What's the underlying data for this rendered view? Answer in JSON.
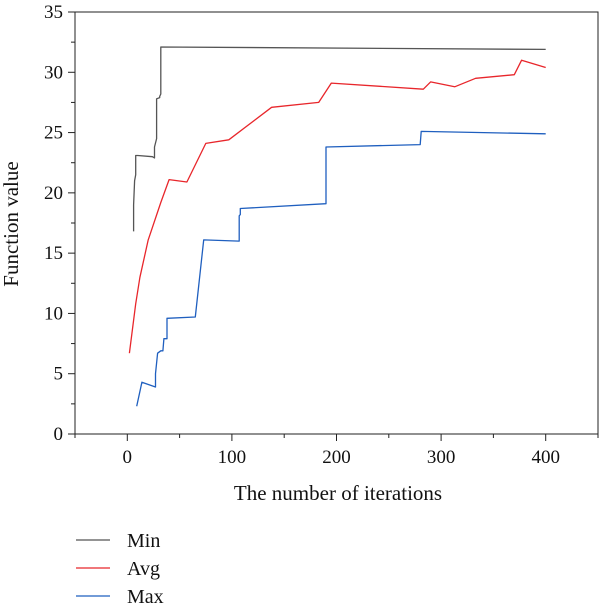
{
  "chart_data": {
    "type": "line",
    "title": "",
    "xlabel": "The number of iterations",
    "ylabel": "Function value",
    "xlim": [
      -50,
      450
    ],
    "ylim": [
      0,
      35
    ],
    "x_ticks": [
      0,
      100,
      200,
      300,
      400
    ],
    "y_ticks": [
      0,
      5,
      10,
      15,
      20,
      25,
      30,
      35
    ],
    "grid": false,
    "legend_position": "bottom-left, below plot",
    "series": [
      {
        "name": "Min",
        "color": "#555555",
        "x": [
          6,
          6,
          7,
          8,
          8,
          10,
          24,
          26,
          26,
          28,
          28,
          31,
          31,
          32,
          32,
          400
        ],
        "y": [
          16.8,
          19.0,
          21.0,
          21.5,
          23.1,
          23.1,
          23.0,
          22.9,
          23.8,
          24.5,
          27.8,
          27.9,
          28.0,
          28.2,
          32.1,
          31.9
        ]
      },
      {
        "name": "Avg",
        "color": "#e8262b",
        "x": [
          2,
          8,
          12,
          20,
          32,
          40,
          57,
          75,
          97,
          138,
          183,
          195,
          283,
          290,
          313,
          333,
          370,
          377,
          400
        ],
        "y": [
          6.7,
          10.8,
          13.0,
          16.1,
          19.2,
          21.1,
          20.9,
          24.1,
          24.4,
          27.1,
          27.5,
          29.1,
          28.6,
          29.2,
          28.8,
          29.5,
          29.8,
          31.0,
          30.4
        ]
      },
      {
        "name": "Max",
        "color": "#1f5fbf",
        "x": [
          9,
          14,
          27,
          27,
          29,
          32,
          34,
          35,
          38,
          38,
          65,
          73,
          107,
          107,
          108,
          108,
          190,
          190,
          280,
          281,
          400
        ],
        "y": [
          2.3,
          4.3,
          3.9,
          5.0,
          6.7,
          6.9,
          6.9,
          7.9,
          7.9,
          9.6,
          9.7,
          16.1,
          16.0,
          18.1,
          18.2,
          18.7,
          19.1,
          23.8,
          24.0,
          25.1,
          24.9
        ]
      }
    ]
  }
}
